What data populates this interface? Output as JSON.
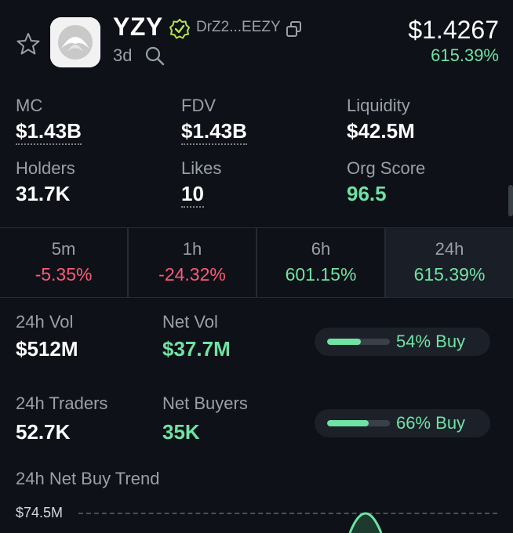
{
  "header": {
    "ticker": "YZY",
    "address": "DrZ2...EEZY",
    "age": "3d",
    "price": "$1.4267",
    "price_change": "615.39%"
  },
  "stats": [
    {
      "label": "MC",
      "value": "$1.43B"
    },
    {
      "label": "FDV",
      "value": "$1.43B"
    },
    {
      "label": "Liquidity",
      "value": "$42.5M"
    },
    {
      "label": "Holders",
      "value": "31.7K"
    },
    {
      "label": "Likes",
      "value": "10"
    },
    {
      "label": "Org Score",
      "value": "96.5"
    }
  ],
  "timeframes": [
    {
      "label": "5m",
      "value": "-5.35%"
    },
    {
      "label": "1h",
      "value": "-24.32%"
    },
    {
      "label": "6h",
      "value": "601.15%"
    },
    {
      "label": "24h",
      "value": "615.39%"
    }
  ],
  "volume": {
    "vol_label": "24h Vol",
    "vol_value": "$512M",
    "net_vol_label": "Net Vol",
    "net_vol_value": "$37.7M",
    "vol_buy_text": "54% Buy",
    "vol_buy_fraction": 0.54,
    "traders_label": "24h Traders",
    "traders_value": "52.7K",
    "net_buyers_label": "Net Buyers",
    "net_buyers_value": "35K",
    "traders_buy_text": "66% Buy",
    "traders_buy_fraction": 0.66
  },
  "trend": {
    "title": "24h Net Buy Trend",
    "max_label": "$74.5M"
  },
  "colors": {
    "positive": "#6fe3a4",
    "negative": "#ff5a7a",
    "verified": "#b6e34a"
  },
  "icons": [
    "star-icon",
    "token-logo",
    "verified-badge-icon",
    "copy-icon",
    "search-icon"
  ]
}
